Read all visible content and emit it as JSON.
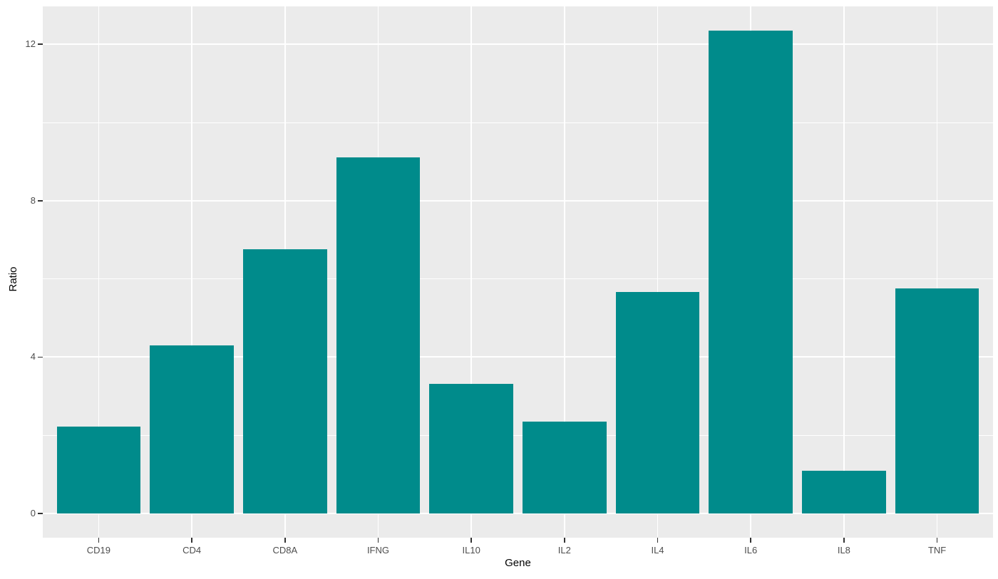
{
  "chart_data": {
    "type": "bar",
    "title": "",
    "xlabel": "Gene",
    "ylabel": "Ratio",
    "categories": [
      "CD19",
      "CD4",
      "CD8A",
      "IFNG",
      "IL10",
      "IL2",
      "IL4",
      "IL6",
      "IL8",
      "TNF"
    ],
    "values": [
      2.22,
      4.29,
      6.75,
      9.11,
      3.31,
      2.35,
      5.67,
      12.35,
      1.1,
      5.76
    ],
    "ylim": [
      -0.62,
      12.97
    ],
    "yticks_major": [
      0,
      4,
      8,
      12
    ],
    "yticks_minor": [
      2,
      6,
      10
    ],
    "bar_width_fraction": 0.9,
    "x_expand": 0.6,
    "grid": "on",
    "legend": "none",
    "style": "ggplot2",
    "colors": {
      "bar": "#008B8B",
      "panel_background": "#EBEBEB",
      "gridline": "#FFFFFF",
      "axis_text": "#4D4D4D",
      "axis_title": "#000000",
      "tick_mark": "#333333",
      "figure_background": "#FFFFFF"
    }
  }
}
